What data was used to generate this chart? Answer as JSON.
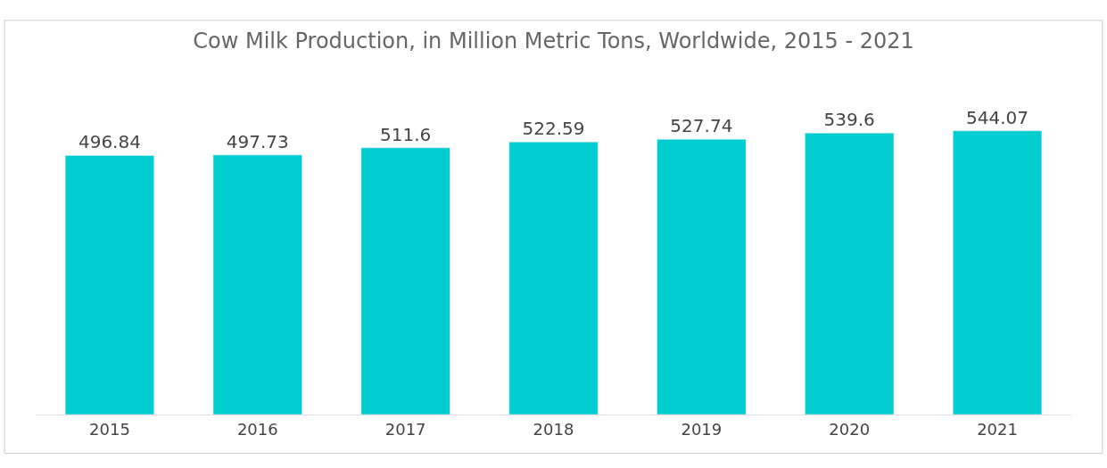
{
  "chart_data": {
    "type": "bar",
    "title": "Cow Milk Production, in Million Metric Tons, Worldwide, 2015 - 2021",
    "categories": [
      "2015",
      "2016",
      "2017",
      "2018",
      "2019",
      "2020",
      "2021"
    ],
    "values": [
      496.84,
      497.73,
      511.6,
      522.59,
      527.74,
      539.6,
      544.07
    ],
    "color": "#00cdd0",
    "data_labels": true,
    "tick_labels": "x"
  }
}
